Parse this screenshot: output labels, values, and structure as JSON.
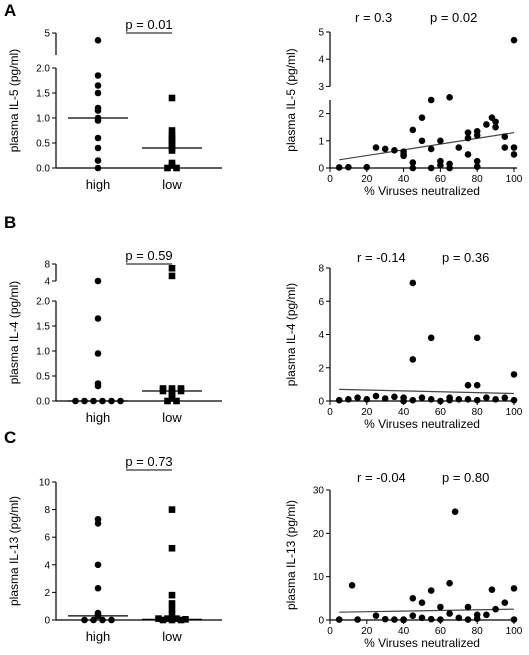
{
  "chart_data": [
    {
      "panel": "A",
      "type": "scatter",
      "ylabel": "plasma IL-5 (pg/ml)",
      "categories": [
        "high",
        "low"
      ],
      "yticks": [
        "0.0",
        "0.5",
        "1.0",
        "1.5",
        "2.0",
        "5"
      ],
      "ylim": [
        0,
        5
      ],
      "ybreak": [
        2.0,
        4.0
      ],
      "p_value": "p = 0.01",
      "series": [
        {
          "values": [
            4.0,
            1.85,
            1.65,
            1.5,
            1.2,
            1.15,
            1.0,
            0.95,
            0.6,
            0.4,
            0.15,
            0.0
          ],
          "median": 1.0,
          "marker": "circle"
        },
        {
          "values": [
            1.4,
            0.75,
            0.65,
            0.6,
            0.55,
            0.5,
            0.45,
            0.4,
            0.35,
            0.1,
            0.05,
            0.0,
            0.0
          ],
          "median": 0.4,
          "marker": "square"
        }
      ]
    },
    {
      "panel": "A-right",
      "type": "scatter",
      "ylabel": "plasma IL-5 (pg/ml)",
      "xlabel": "% Viruses neutralized",
      "xticks": [
        "0",
        "20",
        "40",
        "60",
        "80",
        "100"
      ],
      "yticks": [
        "0",
        "1",
        "2",
        "3",
        "4",
        "5"
      ],
      "xlim": [
        0,
        100
      ],
      "ylim": [
        0,
        5
      ],
      "r_value": "r = 0.3",
      "p_value": "p = 0.02",
      "fit": [
        [
          5,
          0.3
        ],
        [
          100,
          1.3
        ]
      ],
      "points": [
        [
          5,
          0.02
        ],
        [
          10,
          0.03
        ],
        [
          20,
          0.03
        ],
        [
          25,
          0.75
        ],
        [
          30,
          0.7
        ],
        [
          35,
          0.65
        ],
        [
          40,
          0.6
        ],
        [
          40,
          0.5
        ],
        [
          40,
          0.45
        ],
        [
          45,
          1.4
        ],
        [
          45,
          0.2
        ],
        [
          45,
          0.0
        ],
        [
          50,
          1.85
        ],
        [
          50,
          1.0
        ],
        [
          55,
          2.5
        ],
        [
          55,
          0.7
        ],
        [
          55,
          0.0
        ],
        [
          60,
          1.0
        ],
        [
          60,
          0.25
        ],
        [
          60,
          0.1
        ],
        [
          65,
          2.6
        ],
        [
          65,
          0.15
        ],
        [
          65,
          0.0
        ],
        [
          70,
          0.75
        ],
        [
          75,
          1.3
        ],
        [
          75,
          1.1
        ],
        [
          75,
          0.5
        ],
        [
          80,
          1.35
        ],
        [
          80,
          1.2
        ],
        [
          80,
          0.25
        ],
        [
          80,
          0.05
        ],
        [
          85,
          1.6
        ],
        [
          88,
          1.85
        ],
        [
          90,
          1.7
        ],
        [
          90,
          1.5
        ],
        [
          95,
          0.75
        ],
        [
          95,
          1.15
        ],
        [
          100,
          4.7
        ],
        [
          100,
          0.75
        ],
        [
          100,
          0.5
        ]
      ]
    },
    {
      "panel": "B",
      "type": "scatter",
      "ylabel": "plasma IL-4 (pg/ml)",
      "categories": [
        "high",
        "low"
      ],
      "yticks": [
        "0.0",
        "0.5",
        "1.0",
        "1.5",
        "2.0",
        "4",
        "8"
      ],
      "ylim": [
        0,
        8
      ],
      "ybreak": [
        2.0,
        4.0
      ],
      "p_value": "p = 0.59",
      "series": [
        {
          "values": [
            4.0,
            1.65,
            0.95,
            0.35,
            0.3,
            0.0,
            0.0,
            0.0,
            0.0,
            0.0,
            0.0
          ],
          "median": 0.0,
          "marker": "circle"
        },
        {
          "values": [
            7.0,
            5.2,
            0.25,
            0.25,
            0.25,
            0.2,
            0.2,
            0.2,
            0.15,
            0.1,
            0.05,
            0.0,
            0.0
          ],
          "median": 0.2,
          "marker": "square"
        }
      ]
    },
    {
      "panel": "B-right",
      "type": "scatter",
      "ylabel": "plasma IL-4 (pg/ml)",
      "xlabel": "% Viruses neutralized",
      "xticks": [
        "0",
        "20",
        "40",
        "60",
        "80",
        "100"
      ],
      "yticks": [
        "0",
        "2",
        "4",
        "6",
        "8"
      ],
      "xlim": [
        0,
        100
      ],
      "ylim": [
        0,
        8
      ],
      "r_value": "r = -0.14",
      "p_value": "p = 0.36",
      "fit": [
        [
          5,
          0.7
        ],
        [
          100,
          0.45
        ]
      ],
      "points": [
        [
          5,
          0.05
        ],
        [
          10,
          0.1
        ],
        [
          15,
          0.2
        ],
        [
          20,
          0.1
        ],
        [
          25,
          0.3
        ],
        [
          30,
          0.15
        ],
        [
          35,
          0.25
        ],
        [
          40,
          0.2
        ],
        [
          40,
          0.0
        ],
        [
          45,
          7.1
        ],
        [
          45,
          2.5
        ],
        [
          45,
          0.05
        ],
        [
          50,
          0.2
        ],
        [
          55,
          3.8
        ],
        [
          55,
          0.1
        ],
        [
          60,
          0.0
        ],
        [
          65,
          0.2
        ],
        [
          65,
          0.05
        ],
        [
          70,
          0.1
        ],
        [
          75,
          0.95
        ],
        [
          75,
          0.1
        ],
        [
          80,
          3.8
        ],
        [
          80,
          0.95
        ],
        [
          80,
          0.05
        ],
        [
          85,
          0.2
        ],
        [
          90,
          0.1
        ],
        [
          95,
          0.2
        ],
        [
          100,
          1.6
        ],
        [
          100,
          0.05
        ]
      ]
    },
    {
      "panel": "C",
      "type": "scatter",
      "ylabel": "plasma IL-13 (pg/ml)",
      "categories": [
        "high",
        "low"
      ],
      "yticks": [
        "0",
        "2",
        "4",
        "6",
        "8",
        "10"
      ],
      "ylim": [
        0,
        10
      ],
      "p_value": "p =  0.73",
      "series": [
        {
          "values": [
            7.3,
            7.0,
            4.0,
            2.3,
            0.5,
            0.4,
            0.3,
            0.0,
            0.0,
            0.0,
            0.0
          ],
          "median": 0.3,
          "marker": "circle"
        },
        {
          "values": [
            8.0,
            5.2,
            1.8,
            1.2,
            0.8,
            0.4,
            0.1,
            0.1,
            0.1,
            0.05,
            0.0,
            0.0,
            0.0
          ],
          "median": 0.05,
          "marker": "square"
        }
      ]
    },
    {
      "panel": "C-right",
      "type": "scatter",
      "ylabel": "plasma IL-13 (pg/ml)",
      "xlabel": "% Viruses neutralized",
      "xticks": [
        "0",
        "20",
        "40",
        "60",
        "80",
        "100"
      ],
      "yticks": [
        "0",
        "10",
        "20",
        "30"
      ],
      "xlim": [
        0,
        100
      ],
      "ylim": [
        0,
        30
      ],
      "r_value": "r = -0.04",
      "p_value": "p = 0.80",
      "fit": [
        [
          5,
          1.8
        ],
        [
          100,
          2.5
        ]
      ],
      "points": [
        [
          5,
          0.1
        ],
        [
          12,
          8.0
        ],
        [
          15,
          0.1
        ],
        [
          25,
          1.0
        ],
        [
          30,
          0.2
        ],
        [
          35,
          0.1
        ],
        [
          40,
          0.1
        ],
        [
          40,
          0.0
        ],
        [
          45,
          5.0
        ],
        [
          45,
          1.0
        ],
        [
          50,
          4.0
        ],
        [
          50,
          0.5
        ],
        [
          55,
          6.8
        ],
        [
          55,
          0.2
        ],
        [
          60,
          3.0
        ],
        [
          60,
          0.1
        ],
        [
          65,
          8.5
        ],
        [
          65,
          1.5
        ],
        [
          68,
          25.0
        ],
        [
          70,
          0.5
        ],
        [
          75,
          3.0
        ],
        [
          75,
          0.1
        ],
        [
          80,
          1.2
        ],
        [
          80,
          0.3
        ],
        [
          85,
          1.2
        ],
        [
          88,
          7.0
        ],
        [
          90,
          2.5
        ],
        [
          95,
          4.0
        ],
        [
          100,
          7.3
        ],
        [
          100,
          0.1
        ]
      ]
    }
  ]
}
